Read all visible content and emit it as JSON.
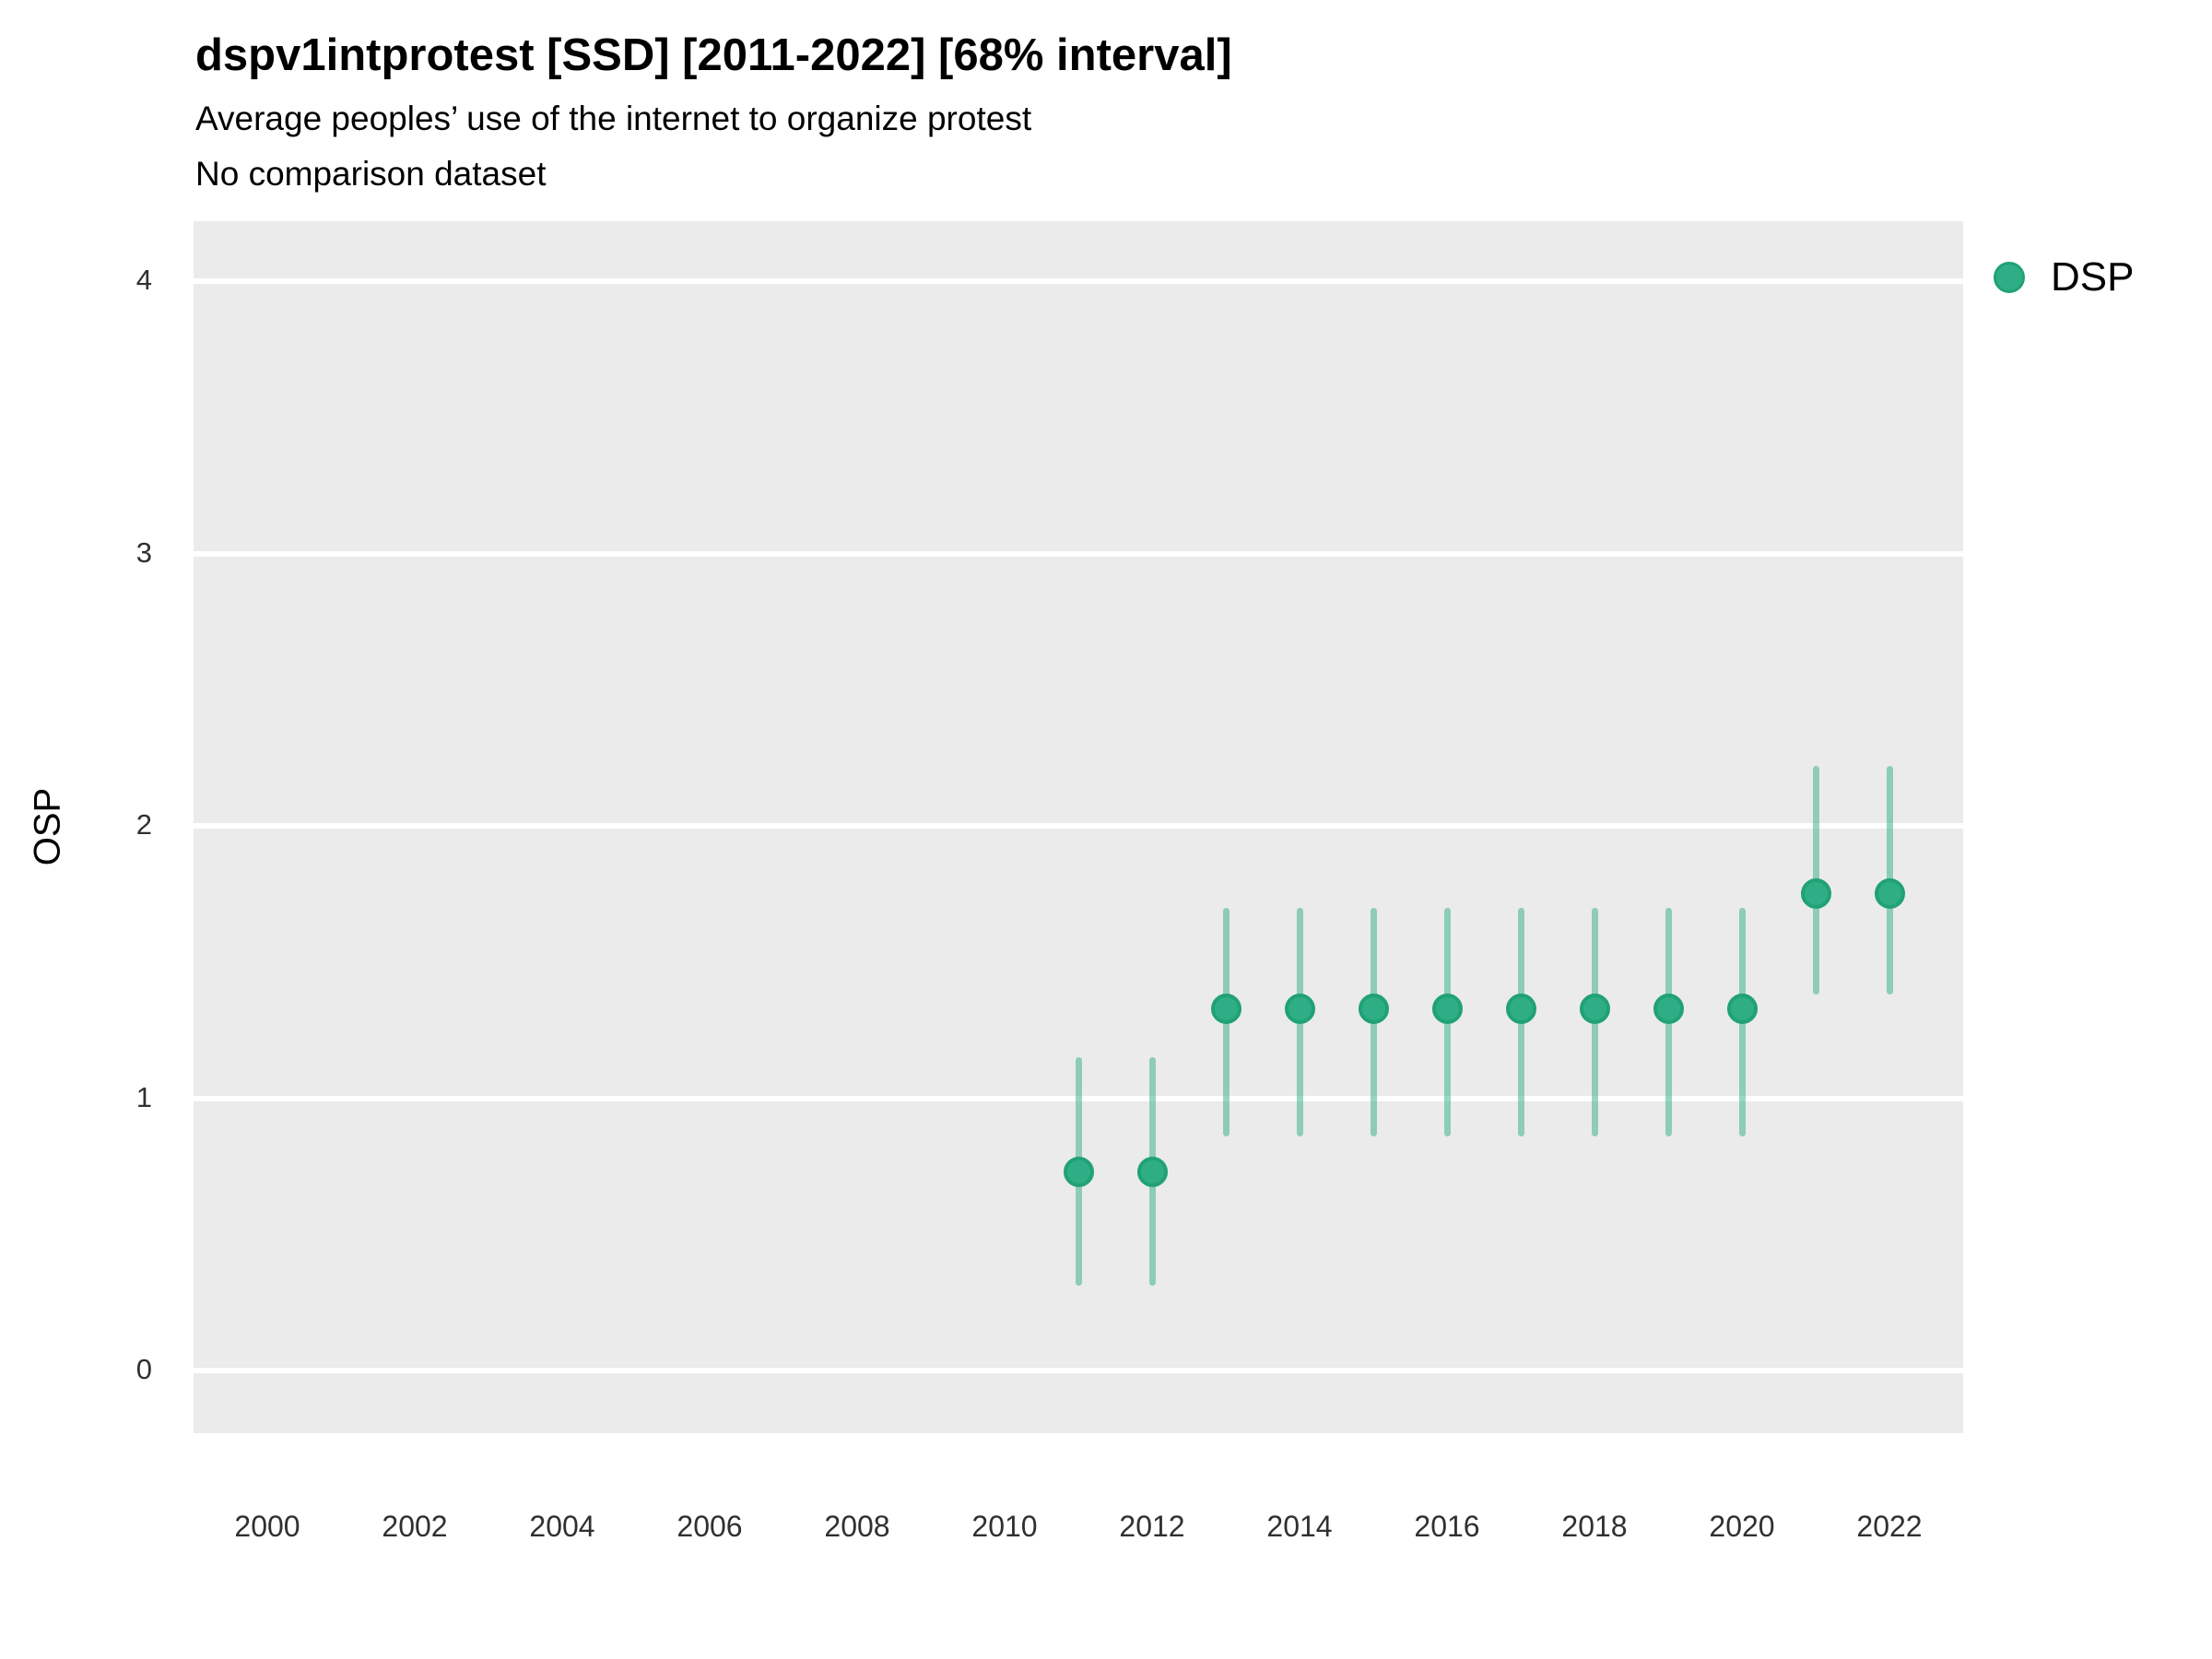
{
  "title": "dspv1intprotest [SSD] [2011-2022] [68% interval]",
  "subtitle_line1": "Average peoples’ use of the internet to organize protest",
  "subtitle_line2": "No comparison dataset",
  "y_axis_title": "OSP",
  "legend": {
    "items": [
      {
        "label": "DSP",
        "marker": "circle-icon"
      }
    ],
    "position": "right-top"
  },
  "colors": {
    "panel_bg": "#ebebeb",
    "grid": "#ffffff",
    "point_fill": "#2fae85",
    "point_stroke": "#21a176",
    "errorbar": "rgba(47,174,133,0.5)"
  },
  "chart_data": {
    "type": "scatter",
    "subtype": "pointrange (point estimates with 68% interval error bars)",
    "title": "dspv1intprotest [SSD] [2011-2022] [68% interval]",
    "subtitle": [
      "Average peoples’ use of the internet to organize protest",
      "No comparison dataset"
    ],
    "xlabel": "",
    "ylabel": "OSP",
    "series_name": "DSP",
    "interval_label": "68% interval",
    "grid": "on",
    "legend_position": "right-top",
    "xlim": [
      1999,
      2023
    ],
    "ylim": [
      -0.23,
      4.22
    ],
    "x_ticks": [
      2000,
      2002,
      2004,
      2006,
      2008,
      2010,
      2012,
      2014,
      2016,
      2018,
      2020,
      2022
    ],
    "y_ticks": [
      0,
      1,
      2,
      3,
      4
    ],
    "points": [
      {
        "year": 2011,
        "value": 0.73,
        "low": 0.31,
        "high": 1.15
      },
      {
        "year": 2012,
        "value": 0.73,
        "low": 0.31,
        "high": 1.15
      },
      {
        "year": 2013,
        "value": 1.33,
        "low": 0.86,
        "high": 1.7
      },
      {
        "year": 2014,
        "value": 1.33,
        "low": 0.86,
        "high": 1.7
      },
      {
        "year": 2015,
        "value": 1.33,
        "low": 0.86,
        "high": 1.7
      },
      {
        "year": 2016,
        "value": 1.33,
        "low": 0.86,
        "high": 1.7
      },
      {
        "year": 2017,
        "value": 1.33,
        "low": 0.86,
        "high": 1.7
      },
      {
        "year": 2018,
        "value": 1.33,
        "low": 0.86,
        "high": 1.7
      },
      {
        "year": 2019,
        "value": 1.33,
        "low": 0.86,
        "high": 1.7
      },
      {
        "year": 2020,
        "value": 1.33,
        "low": 0.86,
        "high": 1.7
      },
      {
        "year": 2021,
        "value": 1.75,
        "low": 1.38,
        "high": 2.22
      },
      {
        "year": 2022,
        "value": 1.75,
        "low": 1.38,
        "high": 2.22
      }
    ]
  }
}
